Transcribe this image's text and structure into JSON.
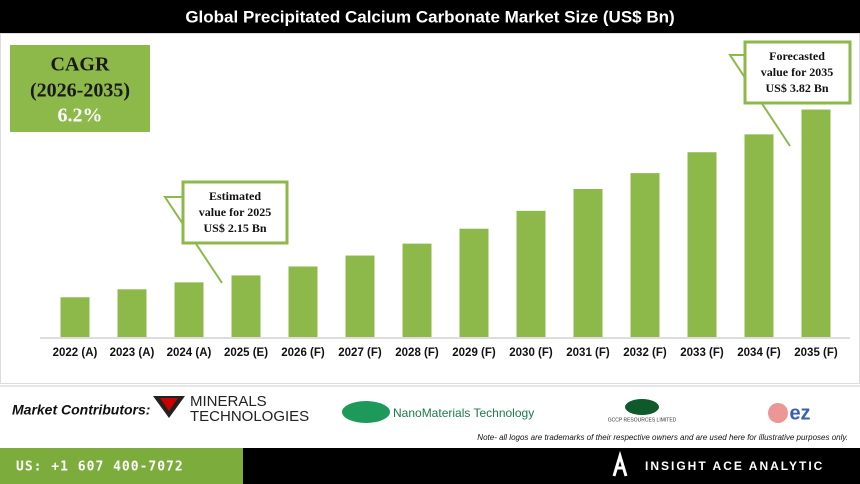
{
  "chart_data": {
    "type": "bar",
    "title": "Global Precipitated Calcium Carbonate Market Size (US$ Bn)",
    "categories": [
      "2022 (A)",
      "2023 (A)",
      "2024 (A)",
      "2025 (E)",
      "2026 (F)",
      "2027 (F)",
      "2028 (F)",
      "2029 (F)",
      "2030 (F)",
      "2031 (F)",
      "2032 (F)",
      "2033 (F)",
      "2034 (F)",
      "2035 (F)"
    ],
    "values": [
      1.93,
      2.01,
      2.08,
      2.15,
      2.24,
      2.35,
      2.47,
      2.62,
      2.8,
      3.02,
      3.18,
      3.39,
      3.57,
      3.82
    ],
    "color": "#8db84a",
    "ylim": [
      1.53,
      4.52
    ],
    "annotations": [
      [
        "Estimated",
        "value for 2025",
        "US$ 2.15 Bn"
      ],
      [
        "Forecasted",
        "value for 2035",
        "US$ 3.82 Bn"
      ]
    ],
    "cagr": [
      "CAGR",
      "(2026-2035)",
      "6.2%"
    ]
  },
  "contributors": {
    "label": "Market Contributors:",
    "logos": [
      "MINERALS",
      "TECHNOLOGIES",
      "NanoMaterials Technology",
      "GCCP RESOURCES LIMITED",
      "ez"
    ],
    "note": "Note- all logos are trademarks of their respective owners and are used here for illustrative purposes only."
  },
  "footer": {
    "phone": "US: +1 607 400-7072",
    "brand": "INSIGHT ACE ANALYTIC"
  }
}
